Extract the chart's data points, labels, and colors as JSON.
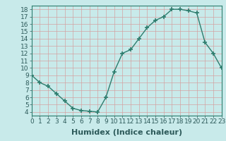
{
  "x": [
    0,
    1,
    2,
    3,
    4,
    5,
    6,
    7,
    8,
    9,
    10,
    11,
    12,
    13,
    14,
    15,
    16,
    17,
    18,
    19,
    20,
    21,
    22,
    23
  ],
  "y": [
    9.0,
    8.0,
    7.5,
    6.5,
    5.5,
    4.5,
    4.2,
    4.1,
    4.0,
    6.0,
    9.5,
    12.0,
    12.5,
    14.0,
    15.5,
    16.5,
    17.0,
    18.0,
    18.0,
    17.8,
    17.5,
    13.5,
    12.0,
    10.0
  ],
  "xlim": [
    0,
    23
  ],
  "ylim": [
    3.5,
    18.5
  ],
  "yticks": [
    4,
    5,
    6,
    7,
    8,
    9,
    10,
    11,
    12,
    13,
    14,
    15,
    16,
    17,
    18
  ],
  "xticks": [
    0,
    1,
    2,
    3,
    4,
    5,
    6,
    7,
    8,
    9,
    10,
    11,
    12,
    13,
    14,
    15,
    16,
    17,
    18,
    19,
    20,
    21,
    22,
    23
  ],
  "xlabel": "Humidex (Indice chaleur)",
  "line_color": "#2d7d6e",
  "marker": "+",
  "marker_size": 4,
  "bg_color": "#c8eaea",
  "grid_color": "#d4a0a0",
  "grid_alpha": 0.8,
  "spine_color": "#2d7d6e",
  "tick_label_fontsize": 6.5,
  "xlabel_fontsize": 8,
  "xlabel_color": "#2d5a5a"
}
